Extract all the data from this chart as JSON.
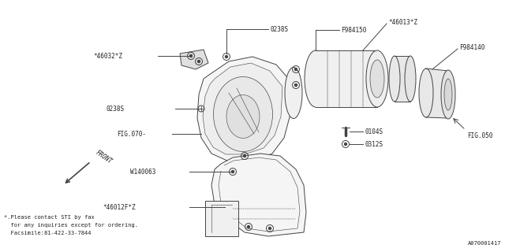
{
  "bg_color": "#ffffff",
  "line_color": "#444444",
  "text_color": "#222222",
  "footnote_line1": "*.Please contact STI by fax",
  "footnote_line2": "  for any inquiries except for ordering.",
  "footnote_line3": "  Facsimile:81-422-33-7844",
  "diagram_id": "A070001417"
}
